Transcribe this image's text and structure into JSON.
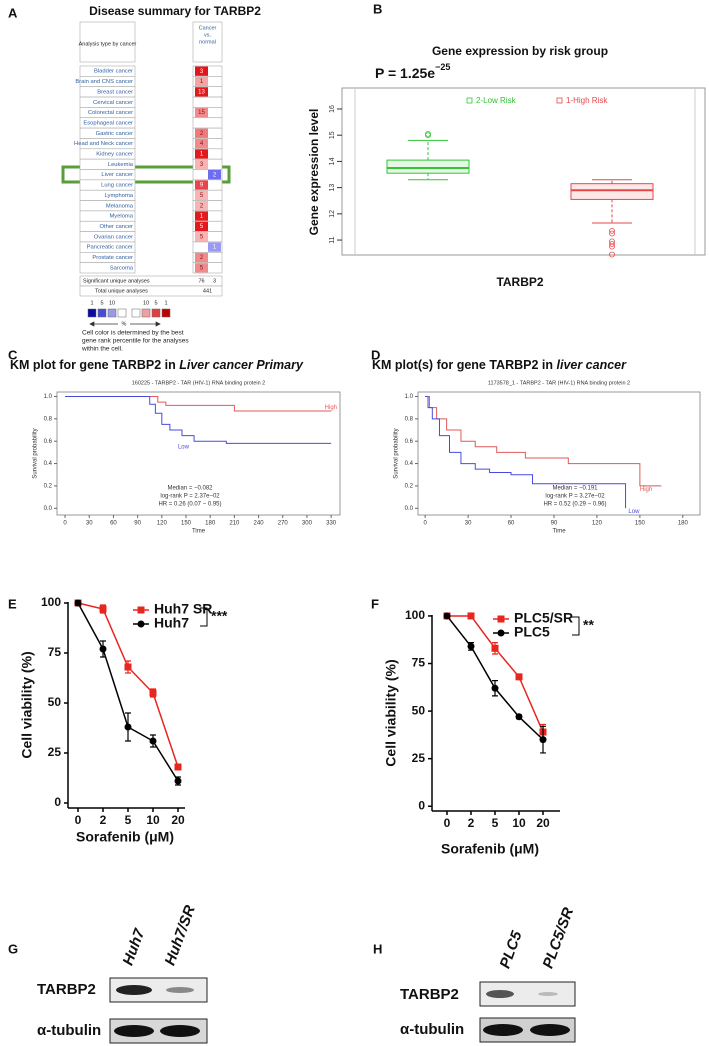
{
  "panel_labels": [
    "A",
    "B",
    "C",
    "D",
    "E",
    "F",
    "G",
    "H"
  ],
  "oncomine": {
    "title": "Disease summary for TARBP2",
    "header_left": "Analysis type by cancer",
    "header_right": [
      "Cancer",
      "vs.",
      "normal"
    ],
    "rows": [
      {
        "cancer": "Bladder cancer",
        "over": 3,
        "under": null,
        "color": "#e3141c"
      },
      {
        "cancer": "Brain and CNS cancer",
        "over": 1,
        "under": null,
        "color": "#f5a3a5"
      },
      {
        "cancer": "Breast cancer",
        "over": 13,
        "under": null,
        "color": "#e31a1c"
      },
      {
        "cancer": "Cervical cancer",
        "over": null,
        "under": null,
        "color": "#ffffff"
      },
      {
        "cancer": "Colorectal cancer",
        "over": 15,
        "under": null,
        "color": "#f08a8c"
      },
      {
        "cancer": "Esophageal cancer",
        "over": null,
        "under": null,
        "color": "#ffffff"
      },
      {
        "cancer": "Gastric cancer",
        "over": 2,
        "under": null,
        "color": "#ee7a7c"
      },
      {
        "cancer": "Head and Neck cancer",
        "over": 4,
        "under": null,
        "color": "#f08a8c"
      },
      {
        "cancer": "Kidney cancer",
        "over": 1,
        "under": null,
        "color": "#e31a1c"
      },
      {
        "cancer": "Leukemia",
        "over": 3,
        "under": null,
        "color": "#f7b4b5"
      },
      {
        "cancer": "Liver cancer",
        "over": null,
        "under": 2,
        "color": "#6d6df2"
      },
      {
        "cancer": "Lung cancer",
        "over": 9,
        "under": null,
        "color": "#e8454a"
      },
      {
        "cancer": "Lymphoma",
        "over": 5,
        "under": null,
        "color": "#f7b4b5"
      },
      {
        "cancer": "Melanoma",
        "over": 2,
        "under": null,
        "color": "#f7b4b5"
      },
      {
        "cancer": "Myeloma",
        "over": 1,
        "under": null,
        "color": "#e31a1c"
      },
      {
        "cancer": "Other cancer",
        "over": 5,
        "under": null,
        "color": "#e31a1c"
      },
      {
        "cancer": "Ovarian cancer",
        "over": 5,
        "under": null,
        "color": "#f7b4b5"
      },
      {
        "cancer": "Pancreatic cancer",
        "over": null,
        "under": 1,
        "color": "#9a9af5"
      },
      {
        "cancer": "Prostate cancer",
        "over": 2,
        "under": null,
        "color": "#f08a8c"
      },
      {
        "cancer": "Sarcoma",
        "over": 5,
        "under": null,
        "color": "#f08a8c"
      }
    ],
    "significant_label": "Significant unique analyses",
    "significant": [
      76,
      3
    ],
    "total_label": "Total unique analyses",
    "total": 441,
    "legend_labels": [
      1,
      5,
      10,
      10,
      5,
      1
    ],
    "legend_unit": "%",
    "note": [
      "Cell color is determined by the best",
      "gene rank percentile for the analyses",
      "within the cell."
    ]
  },
  "chart_data": [
    {
      "type": "box",
      "title": "Gene expression by  risk group",
      "p_label": "P = 1.25e",
      "p_exponent": "−25",
      "ylabel": "Gene expression level",
      "xlabel": "TARBP2",
      "ylim": [
        10.43,
        16.8
      ],
      "yticks": [
        11,
        12,
        13,
        14,
        15,
        16
      ],
      "series": [
        {
          "name": "2-Low Risk",
          "color": "#33c533",
          "whisker_low": 13.3,
          "q1": 13.55,
          "median": 13.75,
          "q3": 14.05,
          "whisker_high": 14.8,
          "outliers": [
            15.0,
            15.05
          ]
        },
        {
          "name": "1-High Risk",
          "color": "#e8474a",
          "whisker_low": 11.65,
          "q1": 12.55,
          "median": 12.9,
          "q3": 13.15,
          "whisker_high": 13.3,
          "outliers": [
            11.35,
            11.25,
            10.95,
            10.85,
            10.75,
            10.45
          ]
        }
      ]
    },
    {
      "type": "km",
      "title": "KM plot for gene TARBP2 in ",
      "title_emphasis": "Liver cancer Primary",
      "subtitle": "160225 - TARBP2 - TAR (HIV-1) RNA binding protein 2",
      "xlabel": "Time",
      "ylabel": "Survival probability",
      "xlim": [
        -10,
        341
      ],
      "xticks": [
        0,
        30,
        60,
        90,
        120,
        150,
        180,
        210,
        240,
        270,
        300,
        330
      ],
      "ylim": [
        -0.06,
        1.04
      ],
      "yticks": [
        {
          "value": 0,
          "label": "0.0"
        },
        0.2,
        0.4,
        0.6,
        0.8,
        {
          "value": 1,
          "label": "1.0"
        }
      ],
      "series": [
        {
          "name": "High",
          "color": "#e05a5a",
          "x": [
            0,
            115,
            115,
            125,
            125,
            210,
            210,
            330
          ],
          "values": [
            1,
            1,
            0.95,
            0.95,
            0.92,
            0.92,
            0.87,
            0.87
          ]
        },
        {
          "name": "Low",
          "color": "#4a4ae0",
          "x": [
            0,
            105,
            105,
            112,
            112,
            120,
            120,
            130,
            130,
            145,
            145,
            160,
            160,
            200,
            200,
            330
          ],
          "values": [
            1,
            1,
            0.93,
            0.93,
            0.85,
            0.85,
            0.75,
            0.75,
            0.7,
            0.7,
            0.65,
            0.65,
            0.6,
            0.6,
            0.58,
            0.58
          ]
        }
      ],
      "stats": [
        "Median = −0.082",
        "log-rank P = 2.37e−02",
        "HR = 0.26 (0.07 − 0.95)"
      ]
    },
    {
      "type": "km",
      "title": "KM plot(s) for gene TARBP2 in ",
      "title_emphasis": "liver cancer",
      "subtitle": "1173578_1 - TARBP2 - TAR (HIV-1) RNA binding protein 2",
      "xlabel": "Time",
      "ylabel": "Survival probability",
      "xlim": [
        -5,
        192
      ],
      "xticks": [
        0,
        30,
        60,
        90,
        120,
        150,
        180
      ],
      "ylim": [
        -0.06,
        1.04
      ],
      "yticks": [
        {
          "value": 0,
          "label": "0.0"
        },
        0.2,
        0.4,
        0.6,
        0.8,
        {
          "value": 1,
          "label": "1.0"
        }
      ],
      "series": [
        {
          "name": "High",
          "color": "#e05a5a",
          "x": [
            0,
            3,
            3,
            8,
            8,
            15,
            15,
            25,
            25,
            35,
            35,
            50,
            50,
            70,
            70,
            100,
            100,
            150,
            150,
            165
          ],
          "values": [
            1,
            1,
            0.9,
            0.9,
            0.8,
            0.8,
            0.7,
            0.7,
            0.6,
            0.6,
            0.55,
            0.55,
            0.5,
            0.5,
            0.45,
            0.45,
            0.4,
            0.4,
            0.2,
            0.2
          ]
        },
        {
          "name": "Low",
          "color": "#4a4ae0",
          "x": [
            0,
            2,
            2,
            5,
            5,
            10,
            10,
            17,
            17,
            25,
            25,
            35,
            35,
            45,
            45,
            60,
            60,
            75,
            75,
            140,
            140
          ],
          "values": [
            1,
            1,
            0.9,
            0.9,
            0.8,
            0.8,
            0.65,
            0.65,
            0.5,
            0.5,
            0.4,
            0.4,
            0.35,
            0.35,
            0.32,
            0.32,
            0.3,
            0.3,
            0.22,
            0.22,
            0
          ]
        }
      ],
      "stats": [
        "Median = −0.191",
        "log-rank P = 3.27e−02",
        "HR = 0.52 (0.29 − 0.96)"
      ]
    },
    {
      "type": "line",
      "ylabel": "Cell viability (%)",
      "xlabel": "Sorafenib (μM)",
      "categories": [
        "0",
        "2",
        "5",
        "10",
        "20"
      ],
      "ylim": [
        -2.5,
        100.5
      ],
      "yticks": [
        0,
        25,
        50,
        75,
        100
      ],
      "series": [
        {
          "name": "Huh7 SR",
          "color": "#e8251f",
          "marker": "square",
          "values": [
            100,
            97,
            68,
            55,
            18
          ],
          "errors": [
            1,
            2,
            3,
            2,
            1
          ]
        },
        {
          "name": "Huh7",
          "color": "#000000",
          "marker": "circle",
          "values": [
            100,
            77,
            38,
            31,
            11
          ],
          "errors": [
            1,
            4,
            7,
            3,
            2
          ]
        }
      ],
      "significance": "***"
    },
    {
      "type": "line",
      "ylabel": "Cell viability (%)",
      "xlabel": "Sorafenib (μM)",
      "categories": [
        "0",
        "2",
        "5",
        "10",
        "20"
      ],
      "ylim": [
        -2.5,
        100.5
      ],
      "yticks": [
        0,
        25,
        50,
        75,
        100
      ],
      "series": [
        {
          "name": "PLC5/SR",
          "color": "#e8251f",
          "marker": "square",
          "values": [
            100,
            100,
            83,
            68,
            39
          ],
          "errors": [
            0,
            0,
            3,
            1,
            4
          ]
        },
        {
          "name": "PLC5",
          "color": "#000000",
          "marker": "circle",
          "values": [
            100,
            84,
            62,
            47,
            35
          ],
          "errors": [
            1,
            2,
            4,
            1,
            7
          ]
        }
      ],
      "significance": "**"
    }
  ],
  "blots": [
    {
      "lanes": [
        "Huh7",
        "Huh7/SR"
      ],
      "proteins": [
        "TARBP2",
        "α-tubulin"
      ]
    },
    {
      "lanes": [
        "PLC5",
        "PLC5/SR"
      ],
      "proteins": [
        "TARBP2",
        "α-tubulin"
      ]
    }
  ]
}
